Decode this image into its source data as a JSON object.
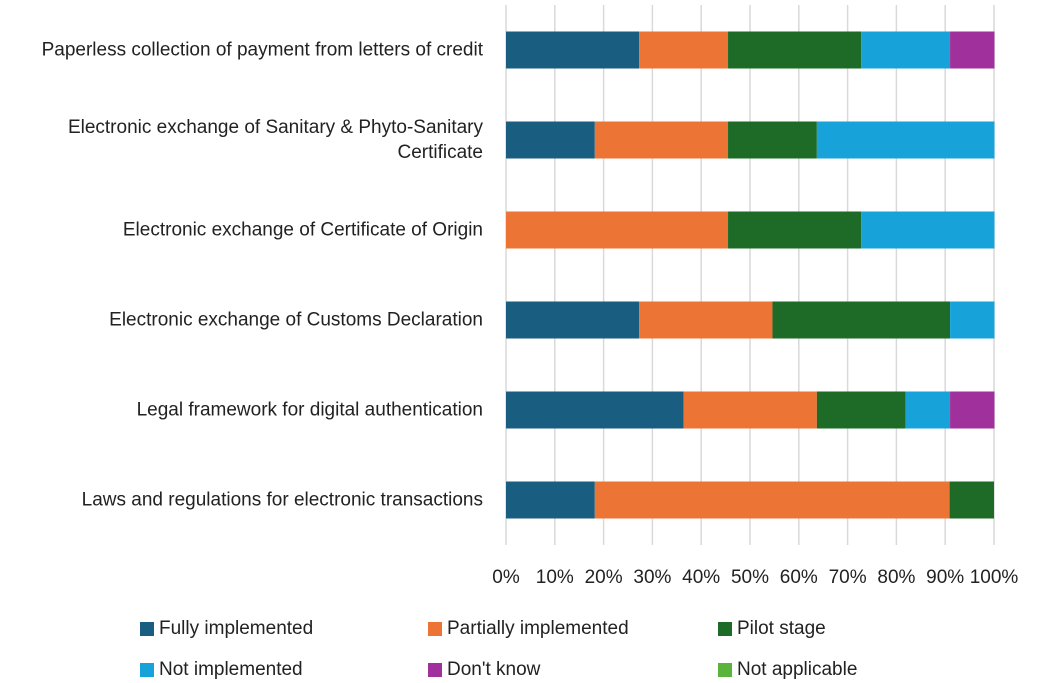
{
  "chart_data": {
    "type": "stacked_barh",
    "categories": [
      "Paperless collection of payment from letters of credit",
      "Electronic exchange of Sanitary & Phyto-Sanitary Certificate",
      "Electronic exchange of Certificate of Origin",
      "Electronic exchange of Customs Declaration",
      "Legal framework for digital authentication",
      "Laws and regulations for electronic transactions"
    ],
    "series": [
      {
        "name": "Fully implemented",
        "color": "#195d80",
        "values": [
          27.3,
          18.2,
          0,
          27.3,
          36.4,
          18.2
        ]
      },
      {
        "name": "Partially implemented",
        "color": "#ec7434",
        "values": [
          18.2,
          27.3,
          45.5,
          27.3,
          27.3,
          72.7
        ]
      },
      {
        "name": "Pilot stage",
        "color": "#1d6b26",
        "values": [
          27.3,
          18.2,
          27.3,
          36.4,
          18.2,
          9.1
        ]
      },
      {
        "name": "Not implemented",
        "color": "#17a3d9",
        "values": [
          18.2,
          36.4,
          27.3,
          9.1,
          9.1,
          0
        ]
      },
      {
        "name": "Don't know",
        "color": "#a0309b",
        "values": [
          9.1,
          0,
          0,
          0,
          9.1,
          0
        ]
      },
      {
        "name": "Not applicable",
        "color": "#5ab43b",
        "values": [
          0,
          0,
          0,
          0,
          0,
          0
        ]
      }
    ],
    "xlim": [
      0,
      100
    ],
    "xticks": [
      {
        "value": 0,
        "label": "0%"
      },
      {
        "value": 10,
        "label": "10%"
      },
      {
        "value": 20,
        "label": "20%"
      },
      {
        "value": 30,
        "label": "30%"
      },
      {
        "value": 40,
        "label": "40%"
      },
      {
        "value": 50,
        "label": "50%"
      },
      {
        "value": 60,
        "label": "60%"
      },
      {
        "value": 70,
        "label": "70%"
      },
      {
        "value": 80,
        "label": "80%"
      },
      {
        "value": 90,
        "label": "90%"
      },
      {
        "value": 100,
        "label": "100%"
      }
    ],
    "grid": true
  }
}
